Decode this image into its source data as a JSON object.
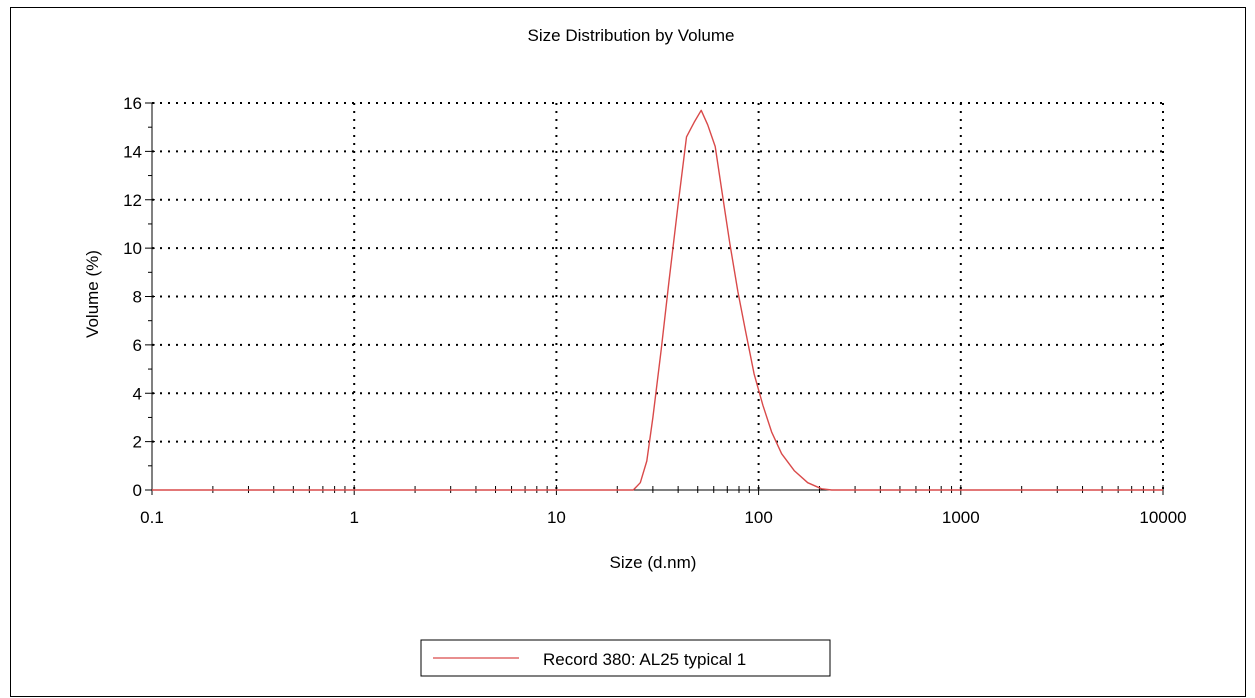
{
  "chart_data": {
    "type": "line",
    "title": "Size Distribution by Volume",
    "xlabel": "Size (d.nm)",
    "ylabel": "Volume (%)",
    "x_scale": "log",
    "xlim": [
      0.1,
      10000
    ],
    "ylim": [
      0,
      16
    ],
    "x_ticks": [
      0.1,
      1,
      10,
      100,
      1000,
      10000
    ],
    "x_tick_labels": [
      "0.1",
      "1",
      "10",
      "100",
      "1000",
      "10000"
    ],
    "y_ticks": [
      0,
      2,
      4,
      6,
      8,
      10,
      12,
      14,
      16
    ],
    "y_tick_labels": [
      "0",
      "2",
      "4",
      "6",
      "8",
      "10",
      "12",
      "14",
      "16"
    ],
    "grid": true,
    "legend_position": "bottom-center",
    "series": [
      {
        "name": "Record 380: AL25 typical 1",
        "color": "#d94a4a",
        "x": [
          0.1,
          1,
          10,
          24,
          26,
          28,
          30,
          33,
          36,
          40,
          44,
          48,
          52,
          56,
          61,
          66,
          72,
          79,
          86,
          95,
          105,
          116,
          130,
          150,
          175,
          205,
          230,
          300,
          1000,
          10000
        ],
        "y": [
          0,
          0,
          0,
          0,
          0.3,
          1.2,
          3.0,
          5.8,
          8.6,
          11.8,
          14.6,
          15.2,
          15.7,
          15.1,
          14.2,
          12.3,
          10.2,
          8.2,
          6.6,
          4.8,
          3.5,
          2.4,
          1.5,
          0.8,
          0.3,
          0.05,
          0,
          0,
          0,
          0
        ]
      }
    ]
  }
}
